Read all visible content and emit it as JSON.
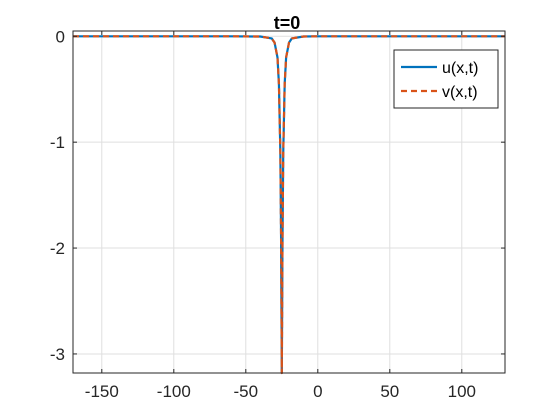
{
  "chart_data": {
    "type": "line",
    "title": "t=0",
    "xlabel": "",
    "ylabel": "",
    "xlim": [
      -170,
      130
    ],
    "ylim": [
      -3.18,
      0.05
    ],
    "xticks": [
      -150,
      -100,
      -50,
      0,
      50,
      100
    ],
    "xtick_labels": [
      "-150",
      "-100",
      "-50",
      "0",
      "50",
      "100"
    ],
    "yticks": [
      0,
      -1,
      -2,
      -3
    ],
    "ytick_labels": [
      "0",
      "-1",
      "-2",
      "-3"
    ],
    "grid": true,
    "legend_position": "top-right",
    "series": [
      {
        "name": "u(x,t)",
        "color": "#0072BD",
        "style": "solid",
        "x": [
          -170,
          -60,
          -40,
          -32,
          -30,
          -28,
          -27,
          -26,
          -25.5,
          -25,
          -24.5,
          -24,
          -23,
          -22,
          -20,
          -18,
          -10,
          0,
          130
        ],
        "y": [
          0,
          0,
          -0.002,
          -0.02,
          -0.06,
          -0.2,
          -0.45,
          -1.1,
          -1.9,
          -3.18,
          -1.9,
          -1.1,
          -0.45,
          -0.2,
          -0.06,
          -0.02,
          -0.002,
          0,
          0
        ]
      },
      {
        "name": "v(x,t)",
        "color": "#D95319",
        "style": "dashed",
        "x": [
          -170,
          -60,
          -40,
          -32,
          -30,
          -28,
          -27,
          -26,
          -25.5,
          -25,
          -24.5,
          -24,
          -23,
          -22,
          -20,
          -18,
          -10,
          0,
          130
        ],
        "y": [
          0,
          0,
          -0.002,
          -0.02,
          -0.06,
          -0.2,
          -0.45,
          -1.1,
          -1.9,
          -3.18,
          -1.9,
          -1.1,
          -0.45,
          -0.2,
          -0.06,
          -0.02,
          -0.002,
          0,
          0
        ]
      }
    ]
  }
}
